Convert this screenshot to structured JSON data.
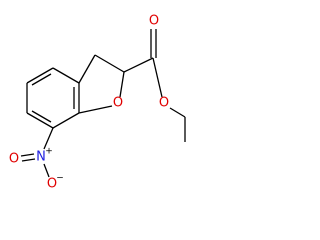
{
  "atoms": [
    "O",
    "O",
    "O",
    "N",
    "O",
    "O"
  ],
  "charges": [
    "+",
    "−"
  ]
}
